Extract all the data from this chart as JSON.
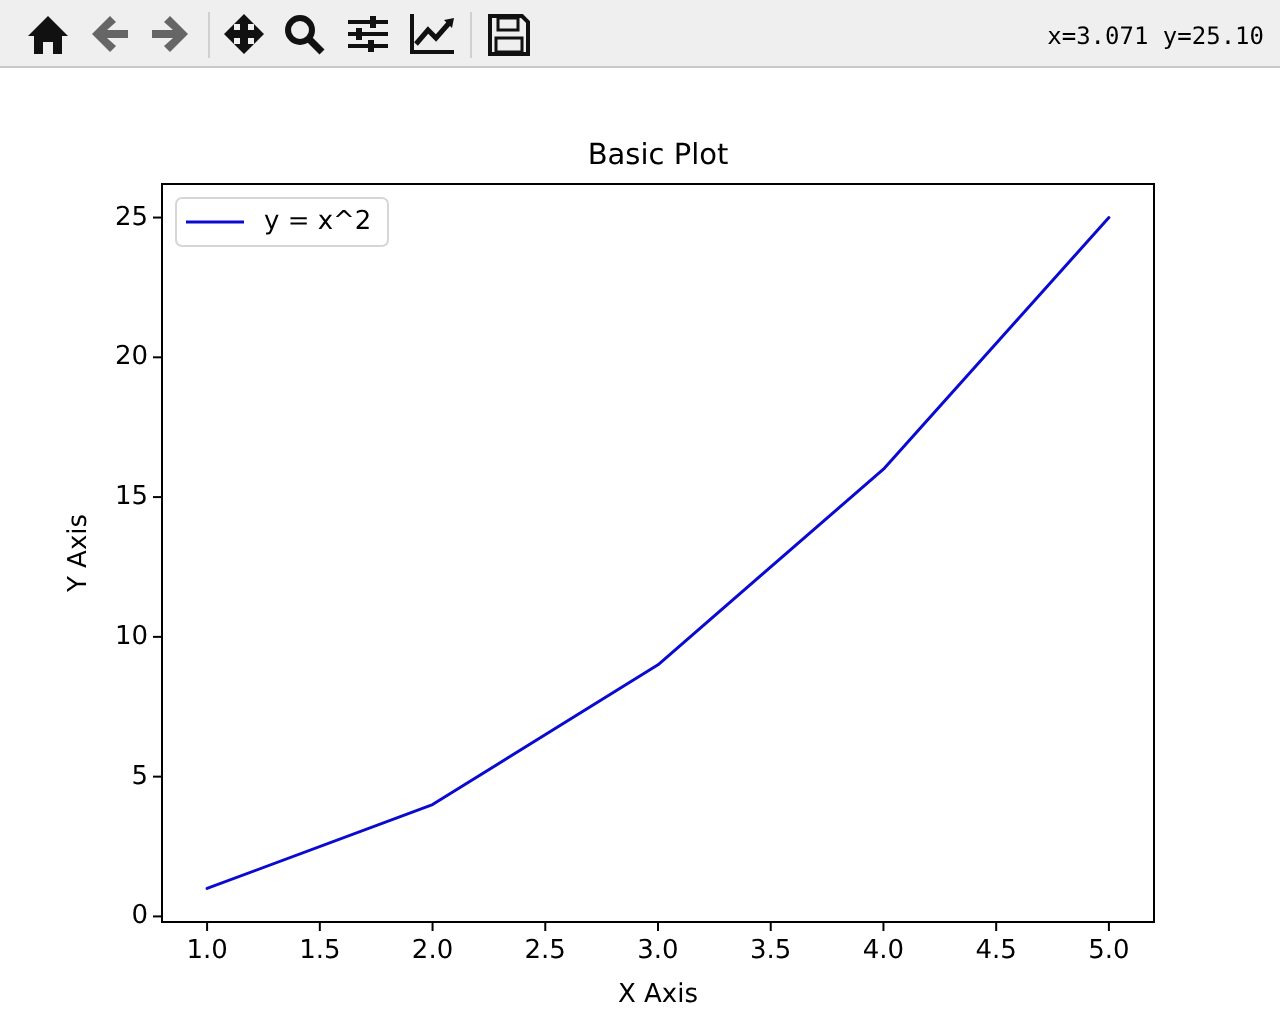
{
  "chart_data": {
    "type": "line",
    "title": "Basic Plot",
    "xlabel": "X Axis",
    "ylabel": "Y Axis",
    "x": [
      1,
      2,
      3,
      4,
      5
    ],
    "series": [
      {
        "name": "y = x^2",
        "color": "#0a0ad0",
        "values": [
          1,
          4,
          9,
          16,
          25
        ]
      }
    ],
    "xlim": [
      0.8,
      5.2
    ],
    "ylim": [
      -0.2,
      26.2
    ],
    "xticks": [
      {
        "value": 1,
        "label": "1.0"
      },
      {
        "value": 1.5,
        "label": "1.5"
      },
      {
        "value": 2,
        "label": "2.0"
      },
      {
        "value": 2.5,
        "label": "2.5"
      },
      {
        "value": 3,
        "label": "3.0"
      },
      {
        "value": 3.5,
        "label": "3.5"
      },
      {
        "value": 4,
        "label": "4.0"
      },
      {
        "value": 4.5,
        "label": "4.5"
      },
      {
        "value": 5,
        "label": "5.0"
      }
    ],
    "yticks": [
      0,
      5,
      10,
      15,
      20,
      25
    ],
    "legend": "top left",
    "annotations": [
      "x=3.071 y=25.10"
    ]
  }
}
